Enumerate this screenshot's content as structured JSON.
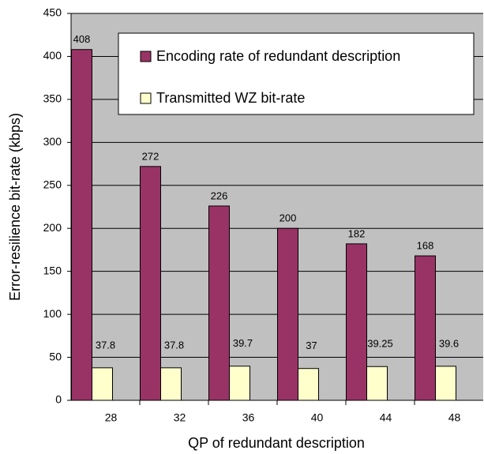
{
  "chart_data": {
    "type": "bar",
    "xlabel": "QP of redundant description",
    "ylabel": "Error-resilience bit-rate (kbps)",
    "categories": [
      "28",
      "32",
      "36",
      "40",
      "44",
      "48"
    ],
    "series": [
      {
        "name": "Encoding rate of redundant description",
        "color": "#993366",
        "values": [
          408,
          272,
          226,
          200,
          182,
          168
        ]
      },
      {
        "name": "Transmitted WZ bit-rate",
        "color": "#ffffcc",
        "values": [
          37.8,
          37.8,
          39.7,
          37,
          39.25,
          39.6
        ]
      }
    ],
    "ylim": [
      0,
      450
    ],
    "yticks": [
      0,
      50,
      100,
      150,
      200,
      250,
      300,
      350,
      400,
      450
    ],
    "grid": true,
    "legend": "upper right",
    "background": "#c0c0c0"
  }
}
